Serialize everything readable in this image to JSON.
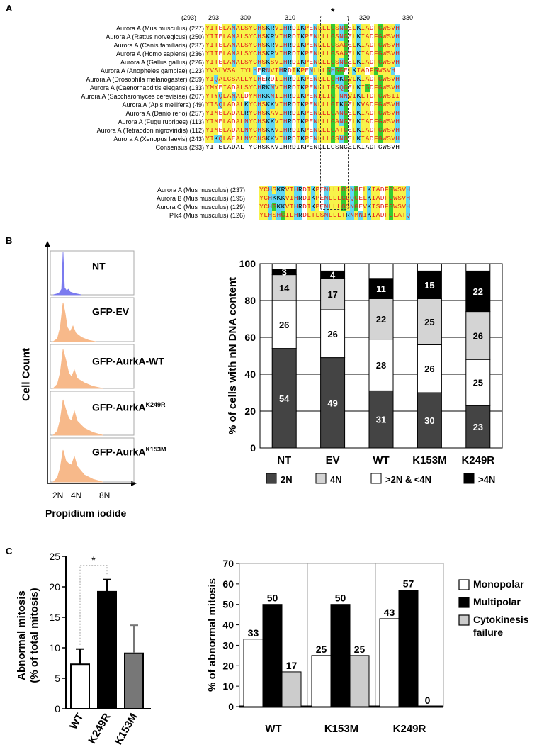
{
  "panel_labels": {
    "a": "A",
    "b": "B",
    "c": "C"
  },
  "panel_a": {
    "ruler": [
      "(293)",
      "293",
      "300",
      "310",
      "*",
      "320",
      "330"
    ],
    "colors": {
      "yellow": "#f7f34a",
      "cyan": "#5fd7f5",
      "red": "#e4211b",
      "green": "#33cc33"
    },
    "alignment_top": [
      {
        "label": "Aurora A (Mus musculus) (227)",
        "seq": "YITELANALSYCHSKRVIHRDIKPENLLLGSNGELKIADFGWSVH"
      },
      {
        "label": "Aurora A (Rattus norvegicus) (250)",
        "seq": "YITELANALSYCHSKRVIHRDIKPENLLLGSNGELKIADFGWSVH"
      },
      {
        "label": "Aurora A (Canis familiaris) (237)",
        "seq": "YITELANALSYCHSKRVIHRDIKPENLLLGSAGELKIADFGWSVH"
      },
      {
        "label": "Aurora A (Homo sapiens) (236)",
        "seq": "YITELANALSYCHSKRVIHRDIKPENLLLGSAGELKIADFGWSVH"
      },
      {
        "label": "Aurora A (Gallus gallus) (226)",
        "seq": "YITELANALSYCHSKSVIHRDIKPENLLLGSNGELKIADFGWSVH"
      },
      {
        "label": "Aurora A (Anopheles gambiae) (123)",
        "seq": "YVSLVSALIYLHERNVIHRDIKPENLLLGHGGELKIADFGWSVH"
      },
      {
        "label": "Aurora A (Drosophila melanogaster) (259)",
        "seq": "YIQALCSALLYLHERDIIHRDIKPENLLLGHKGVLKIADFGWSVH"
      },
      {
        "label": "Aurora A (Caenorhabditis elegans) (133)",
        "seq": "YMYEIADALSYCHRKNVIHRDIKPENLLIGSQGELKIGDFGWSVH"
      },
      {
        "label": "Aurora A (Saccharomyces cerevisiae) (207)",
        "seq": "YTYQLANALDYMHKKNIIHRDIKPENILIGFNNVIKLTDFGWSII"
      },
      {
        "label": "Aurora A (Apis mellifera) (49)",
        "seq": "YISQLADALKYCHSKKVIHRDIKPENLLLGIKGELKVADFGWSVH"
      },
      {
        "label": "Aurora A (Danio rerio) (257)",
        "seq": "YIMELADALRYCHSKAVIHRDIKPENLLLGANGELKIADFGWSVH"
      },
      {
        "label": "Aurora A (Fugu rubripes) (113)",
        "seq": "YIMELADALNYCHSKKVIHRDIKPENLLLGANGELKIADFGWSVH"
      },
      {
        "label": "Aurora A (Tetraodon nigroviridis) (112)",
        "seq": "YIMELADALNYCHSKKVIHRDIKPENLLLGATGELKIADFGWSVH"
      },
      {
        "label": "Aurora A (Xenopus laevis) (243)",
        "seq": "YIKQLAEALNYCHSKKVIHRDIKPENLLLGSNGELKIADFGWSVH"
      },
      {
        "label": "Consensus (293)",
        "seq": "YI ELADAL YCHSKKVIHRDIKPENLLLGSNGELKIADFGWSVH"
      }
    ],
    "alignment_bottom": [
      {
        "label": "Aurora A (Mus musculus) (237)",
        "seq": "YCHSKRVIHRDIKPENLLLGSNGELKIADFGWSVH"
      },
      {
        "label": "Aurora B (Mus musculus) (195)",
        "seq": "YCHKKKVIHRDIKPENLLLGLQGELKIADFGWSVH"
      },
      {
        "label": "Aurora C (Mus musculus) (129)",
        "seq": "YCHGKKVIHRDIKPENLLLGSNGEVKISDFGWSVH"
      },
      {
        "label": "Plk4 (Mus musculus) (126)",
        "seq": "YLHSHGILHRDLTLSNLLLTRNMNIKIADFGLATQ"
      }
    ]
  },
  "panel_b": {
    "histograms": [
      {
        "label": "NT",
        "sup": "",
        "color": "#7b7bef"
      },
      {
        "label": "GFP-EV",
        "sup": "",
        "color": "#f7b98a"
      },
      {
        "label": "GFP-AurkA-WT",
        "sup": "",
        "color": "#f7b98a"
      },
      {
        "label": "GFP-AurkA",
        "sup": "K249R",
        "color": "#f7b98a"
      },
      {
        "label": "GFP-AurkA",
        "sup": "K153M",
        "color": "#f7b98a"
      }
    ],
    "y_label": "Cell Count",
    "x_label": "Propidium iodide",
    "x_ticks": [
      "2N",
      "4N",
      "8N"
    ]
  },
  "chart_data": [
    {
      "type": "bar",
      "stacked": true,
      "categories": [
        "NT",
        "EV",
        "WT",
        "K153M",
        "K249R"
      ],
      "series": [
        {
          "name": "2N",
          "values": [
            54,
            49,
            31,
            30,
            23
          ],
          "color": "#444444"
        },
        {
          "name": ">2N & <4N",
          "values": [
            26,
            26,
            28,
            26,
            25
          ],
          "color": "#ffffff"
        },
        {
          "name": "4N",
          "values": [
            14,
            17,
            22,
            25,
            26
          ],
          "color": "#d4d4d4"
        },
        {
          "name": ">4N",
          "values": [
            3,
            4,
            11,
            15,
            22
          ],
          "color": "#000000"
        }
      ],
      "legend": [
        "2N",
        "4N",
        ">2N & <4N",
        ">4N"
      ],
      "ylabel": "% of cells with nN DNA content",
      "yticks": [
        0,
        20,
        40,
        60,
        80,
        100
      ],
      "ylim": [
        0,
        100
      ]
    },
    {
      "type": "bar",
      "categories": [
        "WT",
        "K249R",
        "K153M"
      ],
      "values": [
        7.3,
        19.2,
        9.1
      ],
      "errors": [
        2.5,
        2.0,
        4.6
      ],
      "colors": [
        "#ffffff",
        "#000000",
        "#777777"
      ],
      "ylabel": "Abnormal mitosis (% of total mitosis)",
      "yticks": [
        0,
        5,
        10,
        15,
        20,
        25
      ],
      "ylim": [
        0,
        25
      ],
      "significance": "*"
    },
    {
      "type": "bar",
      "categories": [
        "WT",
        "K153M",
        "K249R"
      ],
      "series": [
        {
          "name": "Monopolar",
          "values": [
            33,
            25,
            43
          ],
          "color": "#ffffff"
        },
        {
          "name": "Multipolar",
          "values": [
            50,
            50,
            57
          ],
          "color": "#000000"
        },
        {
          "name": "Cytokinesis failure",
          "values": [
            17,
            25,
            0
          ],
          "color": "#cccccc"
        }
      ],
      "ylabel": "% of abnormal mitosis",
      "yticks": [
        0,
        10,
        20,
        30,
        40,
        50,
        60,
        70
      ],
      "ylim": [
        0,
        70
      ],
      "legend": [
        "Monopolar",
        "Multipolar",
        "Cytokinesis failure"
      ]
    }
  ]
}
